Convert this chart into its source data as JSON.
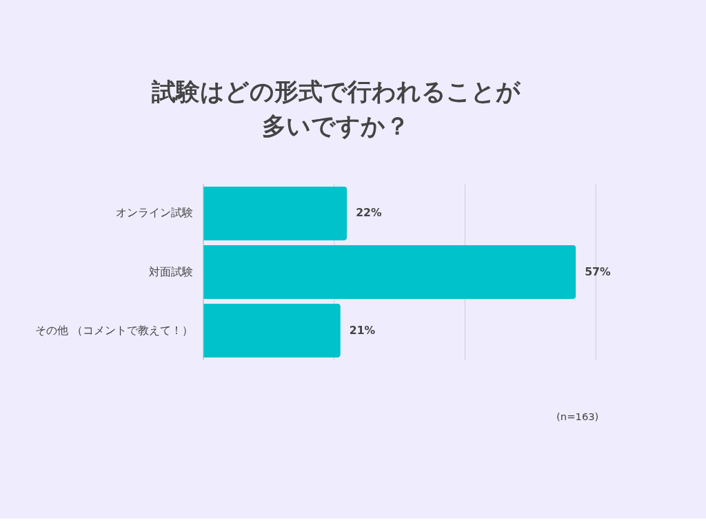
{
  "chart_data": {
    "type": "bar",
    "orientation": "horizontal",
    "title": [
      "試験はどの形式で行われることが",
      "多いですか？"
    ],
    "categories": [
      "オンライン試験",
      "対面試験",
      "その他\n（コメントで教えて！）"
    ],
    "values": [
      22,
      57,
      21
    ],
    "value_labels": [
      "22%",
      "57%",
      "21%"
    ],
    "color": "#00c2cb",
    "xlim": [
      0,
      60
    ],
    "xticks": [
      {
        "value": 0,
        "label": null
      },
      {
        "value": 20,
        "label": null
      },
      {
        "value": 40,
        "label": null
      },
      {
        "value": 60,
        "label": null
      }
    ],
    "grid": "x",
    "tick_labels": "y",
    "annotations": [
      "(n=163)"
    ]
  }
}
